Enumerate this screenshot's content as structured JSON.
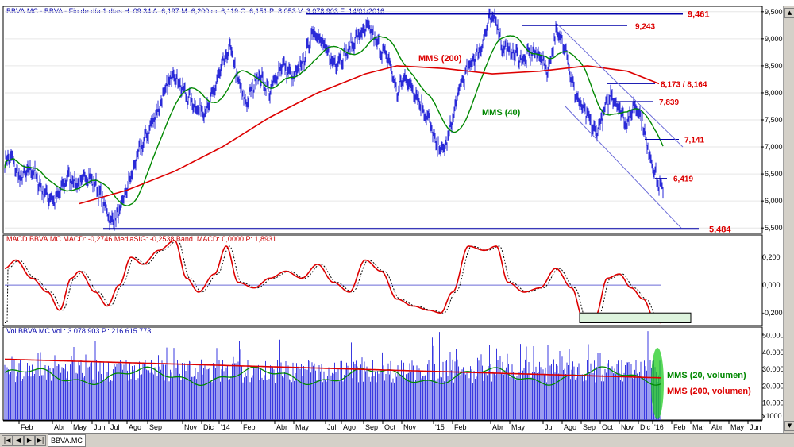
{
  "chart_data": [
    {
      "type": "line",
      "panel": "price",
      "header": "BBVA.MC - BBVA - Fin de día 1 días  H: 09:34  A: 6,197  M: 6,200  m: 6,119  C: 6,151  P: 8,053  V: 3.078.903  F: 14/01/2016",
      "x_labels": [
        "Feb",
        "Abr",
        "May",
        "Jun",
        "Jul",
        "Ago",
        "Sep",
        "Nov",
        "Dic",
        "'14",
        "Feb",
        "Abr",
        "May",
        "Jul",
        "Ago",
        "Sep",
        "Oct",
        "Nov",
        "'15",
        "Feb",
        "Abr",
        "May",
        "Jul",
        "Ago",
        "Sep",
        "Oct",
        "Nov",
        "Dic",
        "'16",
        "Feb",
        "Mar",
        "Abr",
        "May",
        "Jun"
      ],
      "y_ticks": [
        "9,500",
        "9,000",
        "8,500",
        "8,000",
        "7,500",
        "7,000",
        "6,500",
        "6,000",
        "5,500"
      ],
      "ylim": [
        5.4,
        9.6
      ],
      "series": [
        {
          "name": "MMS (200)",
          "color": "#dd0000"
        },
        {
          "name": "MMS (40)",
          "color": "#008800"
        }
      ],
      "levels": [
        {
          "label": "9,461",
          "value": 9.461
        },
        {
          "label": "9,243",
          "value": 9.243
        },
        {
          "label": "8,173 / 8,164",
          "value": 8.17
        },
        {
          "label": "7,839",
          "value": 7.839
        },
        {
          "label": "7,141",
          "value": 7.141
        },
        {
          "label": "6,419",
          "value": 6.419
        },
        {
          "label": "5,484",
          "value": 5.484
        }
      ]
    },
    {
      "type": "line",
      "panel": "macd",
      "header": "MACD  BBVA.MC  MACD: -0,2746  MediaSIG: -0,2538  Band. MACD: 0,0000  P: 1,8931",
      "y_ticks": [
        "0,200",
        "0,000",
        "-0,200"
      ],
      "ylim": [
        -0.29,
        0.36
      ]
    },
    {
      "type": "bar",
      "panel": "volume",
      "header": "Vol  BBVA.MC  Vol.: 3.078.903  P.: 216.615.773",
      "y_ticks": [
        "50.000",
        "40.000",
        "30.000",
        "20.000",
        "10.000"
      ],
      "y_unit": "x1000",
      "ylim": [
        0,
        55000
      ],
      "series": [
        {
          "name": "MMS (20, volumen)",
          "color": "#008800"
        },
        {
          "name": "MMS (200, volumen)",
          "color": "#dd0000"
        }
      ]
    }
  ],
  "ui": {
    "tab_label": "BBVA.MC"
  }
}
